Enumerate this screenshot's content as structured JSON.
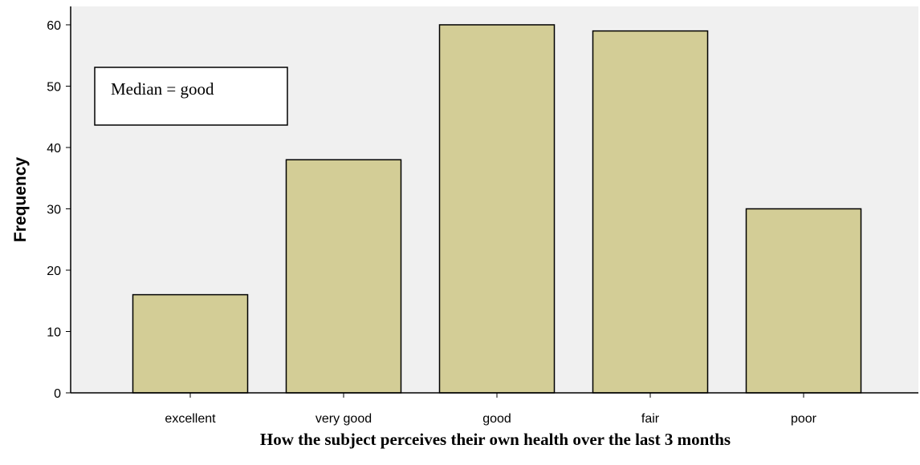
{
  "chart_data": {
    "type": "bar",
    "categories": [
      "excellent",
      "very good",
      "good",
      "fair",
      "poor"
    ],
    "values": [
      16,
      38,
      60,
      59,
      30
    ],
    "title": "",
    "xlabel": "How the subject perceives their own health over the last 3 months",
    "ylabel": "Frequency",
    "ylim": [
      0,
      63
    ],
    "yticks": [
      0,
      10,
      20,
      30,
      40,
      50,
      60
    ],
    "grid": false,
    "annotation": "Median = good",
    "colors": {
      "plot_background": "#f0f0f0",
      "bar_fill": "#d3cd96",
      "bar_stroke": "#000000"
    }
  }
}
